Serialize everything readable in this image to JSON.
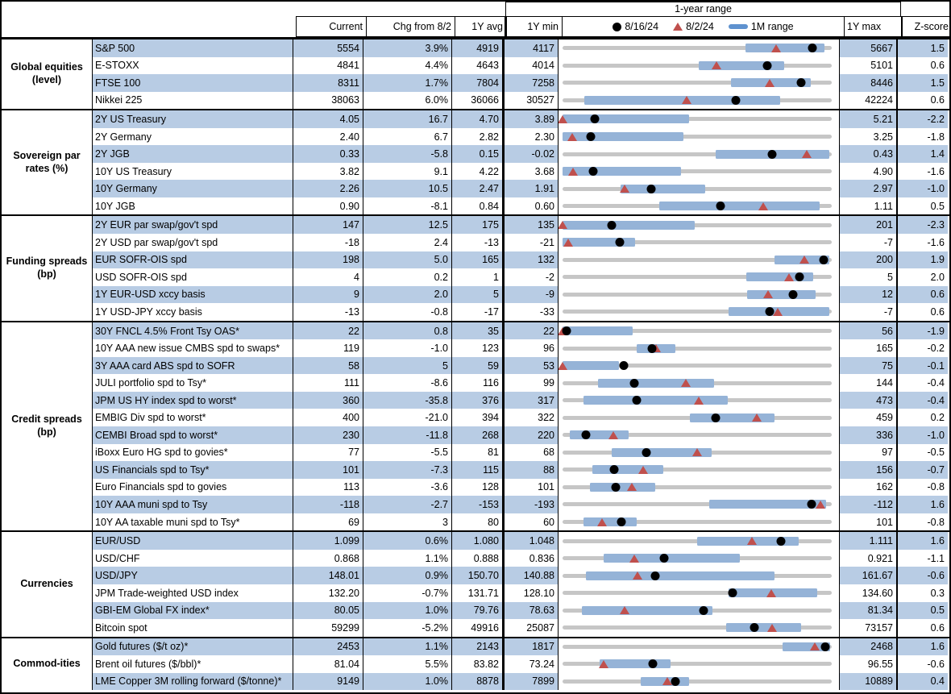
{
  "header": {
    "range_title": "1-year range",
    "col_current": "Current",
    "col_chg": "Chg from 8/2",
    "col_avg": "1Y avg",
    "col_min": "1Y min",
    "col_max": "1Y max",
    "col_z": "Z-score",
    "legend": {
      "dot_label": "8/16/24",
      "tri_label": "8/2/24",
      "bar_label": "1M range"
    }
  },
  "colors": {
    "stripe": "#b8cce4",
    "range_bar": "#95b3d7",
    "track": "#c6c6c6",
    "triangle": "#c0504d",
    "dot": "#000000"
  },
  "chart_data": {
    "type": "table",
    "columns": [
      "Current",
      "Chg from 8/2",
      "1Y avg",
      "1Y min",
      "1-year range",
      "1Y max",
      "Z-score"
    ],
    "legend": [
      "8/16/24 = black dot",
      "8/2/24 = red triangle",
      "1M range = blue bar"
    ],
    "range_note": "dot/tri/bar values are fractions of the 1Y min-to-max track",
    "sections": [
      {
        "category": "Global equities (level)",
        "rows": [
          {
            "label": "S&P 500",
            "current": "5554",
            "chg": "3.9%",
            "avg": "4919",
            "min": "4117",
            "max": "5667",
            "z": "1.5",
            "dot": 0.927,
            "tri": 0.793,
            "bar": [
              0.68,
              0.972
            ]
          },
          {
            "label": "E-STOXX",
            "current": "4841",
            "chg": "4.4%",
            "avg": "4643",
            "min": "4014",
            "max": "5101",
            "z": "0.6",
            "dot": 0.761,
            "tri": 0.573,
            "bar": [
              0.507,
              0.824
            ]
          },
          {
            "label": "FTSE 100",
            "current": "8311",
            "chg": "1.7%",
            "avg": "7804",
            "min": "7258",
            "max": "8446",
            "z": "1.5",
            "dot": 0.886,
            "tri": 0.769,
            "bar": [
              0.626,
              0.923
            ]
          },
          {
            "label": "Nikkei 225",
            "current": "38063",
            "chg": "6.0%",
            "avg": "36066",
            "min": "30527",
            "max": "42224",
            "z": "0.6",
            "dot": 0.644,
            "tri": 0.46,
            "bar": [
              0.082,
              0.809
            ]
          }
        ]
      },
      {
        "category": "Sovereign par rates (%)",
        "rows": [
          {
            "label": "2Y US Treasury",
            "current": "4.05",
            "chg": "16.7",
            "avg": "4.70",
            "min": "3.89",
            "max": "5.21",
            "z": "-2.2",
            "dot": 0.121,
            "tri": 0.0,
            "bar": [
              0,
              0.47
            ]
          },
          {
            "label": "2Y Germany",
            "current": "2.40",
            "chg": "6.7",
            "avg": "2.82",
            "min": "2.30",
            "max": "3.25",
            "z": "-1.8",
            "dot": 0.105,
            "tri": 0.035,
            "bar": [
              0,
              0.45
            ]
          },
          {
            "label": "2Y JGB",
            "current": "0.33",
            "chg": "-5.8",
            "avg": "0.15",
            "min": "-0.02",
            "max": "0.43",
            "z": "1.4",
            "dot": 0.778,
            "tri": 0.907,
            "bar": [
              0.57,
              0.99
            ]
          },
          {
            "label": "10Y US Treasury",
            "current": "3.82",
            "chg": "9.1",
            "avg": "4.22",
            "min": "3.68",
            "max": "4.90",
            "z": "-1.6",
            "dot": 0.115,
            "tri": 0.04,
            "bar": [
              0,
              0.44
            ]
          },
          {
            "label": "10Y Germany",
            "current": "2.26",
            "chg": "10.5",
            "avg": "2.47",
            "min": "1.91",
            "max": "2.97",
            "z": "-1.0",
            "dot": 0.33,
            "tri": 0.231,
            "bar": [
              0.216,
              0.53
            ]
          },
          {
            "label": "10Y JGB",
            "current": "0.90",
            "chg": "-8.1",
            "avg": "0.84",
            "min": "0.60",
            "max": "1.11",
            "z": "0.5",
            "dot": 0.588,
            "tri": 0.747,
            "bar": [
              0.36,
              0.955
            ]
          }
        ]
      },
      {
        "category": "Funding spreads (bp)",
        "rows": [
          {
            "label": "2Y EUR par swap/gov't spd",
            "current": "147",
            "chg": "12.5",
            "avg": "175",
            "min": "135",
            "max": "201",
            "z": "-2.3",
            "dot": 0.182,
            "tri": 0.0,
            "bar": [
              0,
              0.49
            ]
          },
          {
            "label": "2Y USD par swap/gov't spd",
            "current": "-18",
            "chg": "2.4",
            "avg": "-13",
            "min": "-21",
            "max": "-7",
            "z": "-1.6",
            "dot": 0.214,
            "tri": 0.02,
            "bar": [
              0,
              0.27
            ]
          },
          {
            "label": "EUR SOFR-OIS spd",
            "current": "198",
            "chg": "5.0",
            "avg": "165",
            "min": "132",
            "max": "200",
            "z": "1.9",
            "dot": 0.971,
            "tri": 0.897,
            "bar": [
              0.787,
              0.99
            ]
          },
          {
            "label": "USD SOFR-OIS spd",
            "current": "4",
            "chg": "0.2",
            "avg": "1",
            "min": "-2",
            "max": "5",
            "z": "2.0",
            "dot": 0.88,
            "tri": 0.84,
            "bar": [
              0.682,
              0.93
            ]
          },
          {
            "label": "1Y EUR-USD xccy basis",
            "current": "9",
            "chg": "2.0",
            "avg": "5",
            "min": "-9",
            "max": "12",
            "z": "0.6",
            "dot": 0.857,
            "tri": 0.762,
            "bar": [
              0.687,
              0.94
            ]
          },
          {
            "label": "1Y USD-JPY xccy basis",
            "current": "-13",
            "chg": "-0.8",
            "avg": "-17",
            "min": "-33",
            "max": "-7",
            "z": "0.6",
            "dot": 0.769,
            "tri": 0.8,
            "bar": [
              0.618,
              0.99
            ]
          }
        ]
      },
      {
        "category": "Credit spreads (bp)",
        "rows": [
          {
            "label": "30Y FNCL 4.5% Front Tsy OAS*",
            "current": "22",
            "chg": "0.8",
            "avg": "35",
            "min": "22",
            "max": "56",
            "z": "-1.9",
            "dot": 0.015,
            "tri": 0.0,
            "bar": [
              0,
              0.26
            ]
          },
          {
            "label": "10Y AAA new issue CMBS spd to swaps*",
            "current": "119",
            "chg": "-1.0",
            "avg": "123",
            "min": "96",
            "max": "165",
            "z": "-0.2",
            "dot": 0.333,
            "tri": 0.348,
            "bar": [
              0.276,
              0.42
            ]
          },
          {
            "label": "3Y AAA card ABS spd to SOFR",
            "current": "58",
            "chg": "5",
            "avg": "59",
            "min": "53",
            "max": "75",
            "z": "-0.1",
            "dot": 0.227,
            "tri": 0.0,
            "bar": [
              0,
              0.21
            ]
          },
          {
            "label": "JULI portfolio spd to Tsy*",
            "current": "111",
            "chg": "-8.6",
            "avg": "116",
            "min": "99",
            "max": "144",
            "z": "-0.4",
            "dot": 0.267,
            "tri": 0.458,
            "bar": [
              0.132,
              0.563
            ]
          },
          {
            "label": "JPM US HY index spd to worst*",
            "current": "360",
            "chg": "-35.8",
            "avg": "376",
            "min": "317",
            "max": "473",
            "z": "-0.4",
            "dot": 0.276,
            "tri": 0.505,
            "bar": [
              0.077,
              0.613
            ]
          },
          {
            "label": "EMBIG Div spd to worst*",
            "current": "400",
            "chg": "-21.0",
            "avg": "394",
            "min": "322",
            "max": "459",
            "z": "0.2",
            "dot": 0.569,
            "tri": 0.723,
            "bar": [
              0.474,
              0.787
            ]
          },
          {
            "label": "CEMBI Broad spd to worst*",
            "current": "230",
            "chg": "-11.8",
            "avg": "268",
            "min": "220",
            "max": "336",
            "z": "-1.0",
            "dot": 0.086,
            "tri": 0.188,
            "bar": [
              0.028,
              0.246
            ]
          },
          {
            "label": "iBoxx Euro HG spd to govies*",
            "current": "77",
            "chg": "-5.5",
            "avg": "81",
            "min": "68",
            "max": "97",
            "z": "-0.5",
            "dot": 0.31,
            "tri": 0.5,
            "bar": [
              0.182,
              0.553
            ]
          },
          {
            "label": "US Financials spd to Tsy*",
            "current": "101",
            "chg": "-7.3",
            "avg": "115",
            "min": "88",
            "max": "156",
            "z": "-0.7",
            "dot": 0.191,
            "tri": 0.299,
            "bar": [
              0.112,
              0.375
            ]
          },
          {
            "label": "Euro Financials spd to govies",
            "current": "113",
            "chg": "-3.6",
            "avg": "128",
            "min": "101",
            "max": "162",
            "z": "-0.8",
            "dot": 0.197,
            "tri": 0.256,
            "bar": [
              0.102,
              0.345
            ]
          },
          {
            "label": "10Y AAA muni spd to Tsy",
            "current": "-118",
            "chg": "-2.7",
            "avg": "-153",
            "min": "-193",
            "max": "-112",
            "z": "1.6",
            "dot": 0.926,
            "tri": 0.959,
            "bar": [
              0.544,
              0.98
            ]
          },
          {
            "label": "10Y AA taxable muni spd to Tsy*",
            "current": "69",
            "chg": "3",
            "avg": "80",
            "min": "60",
            "max": "101",
            "z": "-0.8",
            "dot": 0.22,
            "tri": 0.146,
            "bar": [
              0.077,
              0.276
            ]
          }
        ]
      },
      {
        "category": "Currencies",
        "rows": [
          {
            "label": "EUR/USD",
            "current": "1.099",
            "chg": "0.6%",
            "avg": "1.080",
            "min": "1.048",
            "max": "1.111",
            "z": "1.6",
            "dot": 0.81,
            "tri": 0.705,
            "bar": [
              0.499,
              0.876
            ]
          },
          {
            "label": "USD/CHF",
            "current": "0.868",
            "chg": "1.1%",
            "avg": "0.888",
            "min": "0.836",
            "max": "0.921",
            "z": "-1.1",
            "dot": 0.376,
            "tri": 0.266,
            "bar": [
              0.152,
              0.658
            ]
          },
          {
            "label": "USD/JPY",
            "current": "148.01",
            "chg": "0.9%",
            "avg": "150.70",
            "min": "140.88",
            "max": "161.67",
            "z": "-0.6",
            "dot": 0.343,
            "tri": 0.279,
            "bar": [
              0.087,
              0.787
            ]
          },
          {
            "label": "JPM Trade-weighted USD index",
            "current": "132.20",
            "chg": "-0.7%",
            "avg": "131.71",
            "min": "128.10",
            "max": "134.60",
            "z": "0.3",
            "dot": 0.631,
            "tri": 0.774,
            "bar": [
              0.618,
              0.945
            ]
          },
          {
            "label": "GBI-EM Global FX index*",
            "current": "80.05",
            "chg": "1.0%",
            "avg": "79.76",
            "min": "78.63",
            "max": "81.34",
            "z": "0.5",
            "dot": 0.524,
            "tri": 0.232,
            "bar": [
              0.072,
              0.558
            ]
          },
          {
            "label": "Bitcoin spot",
            "current": "59299",
            "chg": "-5.2%",
            "avg": "49916",
            "min": "25087",
            "max": "73157",
            "z": "0.6",
            "dot": 0.712,
            "tri": 0.779,
            "bar": [
              0.608,
              0.886
            ]
          }
        ]
      },
      {
        "category": "Commod-ities",
        "rows": [
          {
            "label": "Gold futures ($/t oz)*",
            "current": "2453",
            "chg": "1.1%",
            "avg": "2143",
            "min": "1817",
            "max": "2468",
            "z": "1.6",
            "dot": 0.977,
            "tri": 0.936,
            "bar": [
              0.816,
              0.995
            ]
          },
          {
            "label": "Brent oil futures ($/bbl)*",
            "current": "81.04",
            "chg": "5.5%",
            "avg": "83.82",
            "min": "73.24",
            "max": "96.55",
            "z": "-0.6",
            "dot": 0.335,
            "tri": 0.154,
            "bar": [
              0.137,
              0.4
            ]
          },
          {
            "label": "LME Copper 3M rolling forward ($/tonne)*",
            "current": "9149",
            "chg": "1.0%",
            "avg": "8878",
            "min": "7899",
            "max": "10889",
            "z": "0.4",
            "dot": 0.418,
            "tri": 0.388,
            "bar": [
              0.291,
              0.469
            ]
          }
        ]
      }
    ]
  }
}
